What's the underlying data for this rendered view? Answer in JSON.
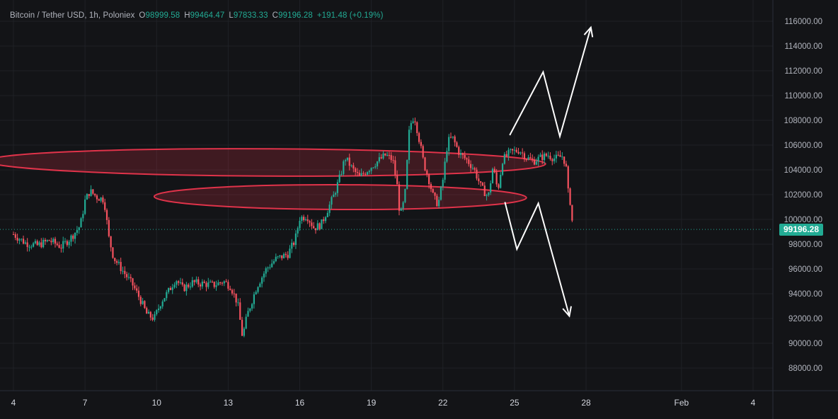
{
  "legend": {
    "symbol": "Bitcoin / Tether USD, 1h, Poloniex",
    "open_label": "O",
    "open": "98999.58",
    "high_label": "H",
    "high": "99464.47",
    "low_label": "L",
    "low": "97833.33",
    "close_label": "C",
    "close": "99196.28",
    "change": "+191.48 (+0.19%)"
  },
  "last_price_label": "99196.28",
  "colors": {
    "background": "#131417",
    "grid": "#1f2126",
    "up": "#22ab94",
    "down": "#f7525f",
    "zone": "#e0334a",
    "projection": "#ffffff",
    "price_line": "#22ab94"
  },
  "chart_data": {
    "type": "candlestick",
    "symbol": "Bitcoin / Tether USD",
    "interval": "1h",
    "exchange": "Poloniex",
    "ylim": [
      86500,
      117000
    ],
    "y_ticks": [
      "88000.00",
      "90000.00",
      "92000.00",
      "94000.00",
      "96000.00",
      "98000.00",
      "100000.00",
      "102000.00",
      "104000.00",
      "106000.00",
      "108000.00",
      "110000.00",
      "112000.00",
      "114000.00",
      "116000.00"
    ],
    "x_ticks": [
      "4",
      "7",
      "10",
      "13",
      "16",
      "19",
      "22",
      "25",
      "28",
      "Feb",
      "4"
    ],
    "x_tick_days": [
      4,
      7,
      10,
      13,
      16,
      19,
      22,
      25,
      28,
      32,
      35
    ],
    "xlim_days": [
      4,
      36.5
    ],
    "last_price": 99196.28,
    "price_path": [
      [
        4.0,
        98800
      ],
      [
        4.5,
        98100
      ],
      [
        5.0,
        97900
      ],
      [
        5.5,
        98300
      ],
      [
        6.0,
        97800
      ],
      [
        6.4,
        98500
      ],
      [
        6.8,
        99500
      ],
      [
        7.0,
        101500
      ],
      [
        7.2,
        102300
      ],
      [
        7.5,
        101800
      ],
      [
        7.8,
        101600
      ],
      [
        8.0,
        98500
      ],
      [
        8.2,
        96900
      ],
      [
        8.6,
        95800
      ],
      [
        9.0,
        94700
      ],
      [
        9.3,
        93600
      ],
      [
        9.6,
        92300
      ],
      [
        9.9,
        92000
      ],
      [
        10.2,
        93400
      ],
      [
        10.5,
        94200
      ],
      [
        10.8,
        95200
      ],
      [
        11.1,
        94400
      ],
      [
        11.5,
        94900
      ],
      [
        12.0,
        94800
      ],
      [
        12.4,
        94700
      ],
      [
        12.8,
        95000
      ],
      [
        13.1,
        94600
      ],
      [
        13.4,
        93200
      ],
      [
        13.6,
        90500
      ],
      [
        13.8,
        92300
      ],
      [
        14.2,
        94600
      ],
      [
        14.6,
        96000
      ],
      [
        15.0,
        96800
      ],
      [
        15.5,
        97200
      ],
      [
        15.8,
        98300
      ],
      [
        16.0,
        100100
      ],
      [
        16.3,
        100300
      ],
      [
        16.6,
        99300
      ],
      [
        16.9,
        99600
      ],
      [
        17.1,
        100500
      ],
      [
        17.4,
        101800
      ],
      [
        17.7,
        103500
      ],
      [
        17.9,
        105000
      ],
      [
        18.2,
        104100
      ],
      [
        18.5,
        103400
      ],
      [
        18.9,
        104100
      ],
      [
        19.2,
        104600
      ],
      [
        19.6,
        105200
      ],
      [
        19.9,
        104800
      ],
      [
        20.1,
        102500
      ],
      [
        20.2,
        100200
      ],
      [
        20.4,
        101700
      ],
      [
        20.6,
        107500
      ],
      [
        20.8,
        108400
      ],
      [
        21.0,
        106500
      ],
      [
        21.2,
        104500
      ],
      [
        21.4,
        103300
      ],
      [
        21.6,
        101800
      ],
      [
        21.8,
        101200
      ],
      [
        22.0,
        103200
      ],
      [
        22.2,
        106300
      ],
      [
        22.4,
        106600
      ],
      [
        22.7,
        105300
      ],
      [
        23.0,
        104800
      ],
      [
        23.3,
        104100
      ],
      [
        23.6,
        102600
      ],
      [
        23.9,
        101800
      ],
      [
        24.1,
        104300
      ],
      [
        24.3,
        102300
      ],
      [
        24.5,
        104800
      ],
      [
        24.8,
        105400
      ],
      [
        25.2,
        105600
      ],
      [
        25.5,
        105000
      ],
      [
        25.8,
        104700
      ],
      [
        26.1,
        105000
      ],
      [
        26.4,
        105200
      ],
      [
        26.7,
        104900
      ],
      [
        27.0,
        105100
      ],
      [
        27.15,
        104500
      ],
      [
        27.25,
        102200
      ],
      [
        27.35,
        101300
      ],
      [
        27.45,
        99196
      ]
    ],
    "annotations": {
      "zones": [
        {
          "cx_day": 14.6,
          "cy": 104600,
          "rx_days": 11.7,
          "ry_price": 1100,
          "tilt_deg": 0.3
        },
        {
          "cx_day": 17.7,
          "cy": 101800,
          "rx_days": 7.8,
          "ry_price": 1000,
          "tilt_deg": 0.2
        }
      ],
      "bullish_path": [
        [
          24.8,
          106800
        ],
        [
          26.2,
          111900
        ],
        [
          26.9,
          106700
        ],
        [
          28.2,
          115500
        ]
      ],
      "bearish_path": [
        [
          24.6,
          101400
        ],
        [
          25.1,
          97600
        ],
        [
          26.0,
          101300
        ],
        [
          27.3,
          92200
        ]
      ]
    }
  }
}
